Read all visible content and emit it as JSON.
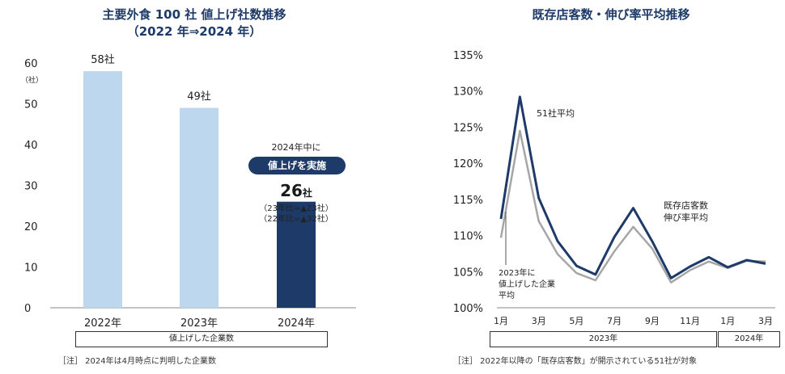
{
  "chart_data": [
    {
      "type": "bar",
      "title": "主要外食 100 社  値上げ社数推移",
      "subtitle": "（2022 年⇒2024 年）",
      "ylabel": "（社）",
      "ylim": [
        0,
        60
      ],
      "yticks": [
        0,
        10,
        20,
        30,
        40,
        50,
        60
      ],
      "categories": [
        "2022年",
        "2023年",
        "2024年"
      ],
      "values": [
        58,
        49,
        26
      ],
      "data_labels": [
        "58社",
        "49社",
        ""
      ],
      "bar_colors": [
        "#bdd7ee",
        "#bdd7ee",
        "#1e3a68"
      ],
      "xlabel_box": "値上げした企業数",
      "annotation": {
        "line1": "2024年中に",
        "pill": "値上げを実施",
        "big_value": "26",
        "big_unit": "社",
        "detail1": "（23年比=▲23社）",
        "detail2": "（22年比=▲32社）"
      },
      "note": "［注］ 2024年は4月時点に判明した企業数"
    },
    {
      "type": "line",
      "title": "既存店客数・伸び率平均推移",
      "ylim": [
        100,
        135
      ],
      "yticks": [
        "100%",
        "105%",
        "110%",
        "115%",
        "120%",
        "125%",
        "130%",
        "135%"
      ],
      "x_tick_labels": [
        "1月",
        "3月",
        "5月",
        "7月",
        "9月",
        "11月",
        "1月",
        "3月"
      ],
      "x": [
        "2023-01",
        "2023-02",
        "2023-03",
        "2023-04",
        "2023-05",
        "2023-06",
        "2023-07",
        "2023-08",
        "2023-09",
        "2023-10",
        "2023-11",
        "2023-12",
        "2024-01",
        "2024-02",
        "2024-03"
      ],
      "series": [
        {
          "name": "51社平均",
          "color": "#1e3a68",
          "values": [
            112.3,
            129.2,
            115.2,
            109.2,
            105.8,
            104.6,
            109.8,
            113.8,
            109.2,
            104.1,
            105.7,
            107.0,
            105.6,
            106.6,
            106.1
          ]
        },
        {
          "name": "2023年に値上げした企業平均",
          "color": "#a6a6a6",
          "values": [
            109.7,
            124.5,
            112.0,
            107.4,
            104.8,
            103.8,
            107.8,
            111.2,
            108.2,
            103.5,
            105.2,
            106.4,
            105.5,
            106.5,
            106.4
          ]
        }
      ],
      "annotations": {
        "avg51": "51社平均",
        "customers_line1": "既存店客数",
        "customers_line2": "伸び率平均",
        "company_line1": "2023年に",
        "company_line2": "値上げした企業",
        "company_line3": "平均"
      },
      "year_boxes": [
        "2023年",
        "2024年"
      ],
      "note": "［注］ 2022年以降の「既存店客数」が開示されている51社が対象"
    }
  ]
}
